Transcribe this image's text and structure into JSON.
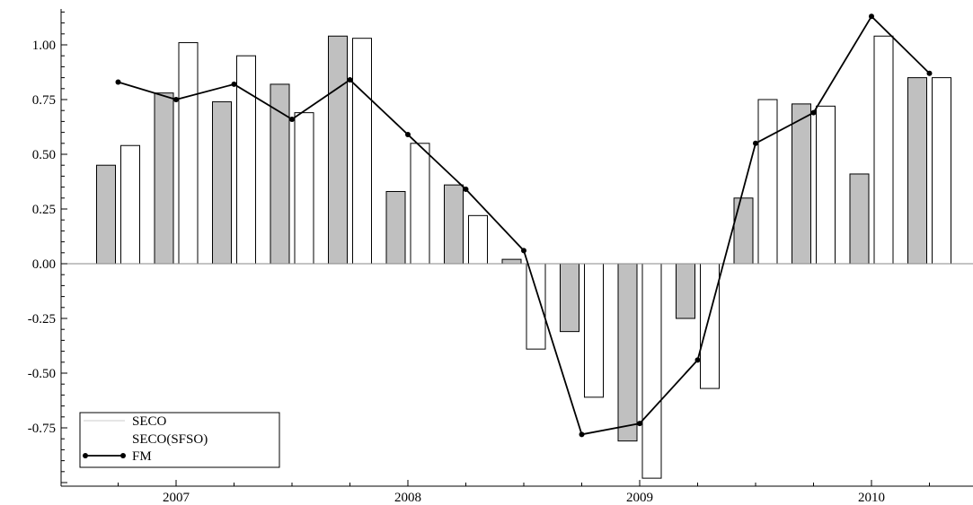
{
  "chart_data": {
    "type": "bar",
    "x": [
      2006.75,
      2007.0,
      2007.25,
      2007.5,
      2007.75,
      2008.0,
      2008.25,
      2008.5,
      2008.75,
      2009.0,
      2009.25,
      2009.5,
      2009.75,
      2010.0,
      2010.25
    ],
    "series": [
      {
        "name": "SECO",
        "kind": "bar",
        "color": "#c0c0c0",
        "values": [
          0.45,
          0.78,
          0.74,
          0.82,
          1.04,
          0.33,
          0.36,
          0.02,
          -0.31,
          -0.81,
          -0.25,
          0.3,
          0.73,
          0.41,
          0.85
        ]
      },
      {
        "name": "SECO(SFSO)",
        "kind": "bar",
        "color": "#ffffff",
        "values": [
          0.54,
          1.01,
          0.95,
          0.69,
          1.03,
          0.55,
          0.22,
          -0.39,
          -0.61,
          -0.98,
          -0.57,
          0.75,
          0.72,
          1.04,
          0.85
        ]
      },
      {
        "name": "FM",
        "kind": "line",
        "color": "#000000",
        "values": [
          0.83,
          0.75,
          0.82,
          0.66,
          0.84,
          0.59,
          0.34,
          0.06,
          -0.78,
          -0.73,
          -0.44,
          0.55,
          0.69,
          1.13,
          0.87
        ]
      }
    ],
    "x_ticks": [
      2007,
      2008,
      2009,
      2010
    ],
    "x_tick_labels": [
      "2007",
      "2008",
      "2009",
      "2010"
    ],
    "y_ticks": [
      1.0,
      0.75,
      0.5,
      0.25,
      0.0,
      -0.25,
      -0.5,
      -0.75
    ],
    "y_tick_labels": [
      "1.00",
      "0.75",
      "0.50",
      "0.25",
      "0.00",
      "-0.25",
      "-0.50",
      "-0.75"
    ],
    "xlim": [
      2006.5,
      2010.55
    ],
    "ylim": [
      -1.0,
      1.15
    ],
    "title": "",
    "xlabel": "",
    "ylabel": "",
    "grid": false,
    "legend_position": "bottom-left"
  }
}
